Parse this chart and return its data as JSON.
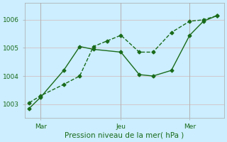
{
  "background_color": "#cceeff",
  "grid_color": "#d4b8b8",
  "line_color": "#1a6b1a",
  "xlabel": "Pression niveau de la mer( hPa )",
  "ylim": [
    1002.5,
    1006.6
  ],
  "yticks": [
    1003,
    1004,
    1005,
    1006
  ],
  "xlim": [
    -0.2,
    8.5
  ],
  "xtick_labels": [
    "Mar",
    "Jeu",
    "Mer"
  ],
  "xtick_positions": [
    0.5,
    4.0,
    7.0
  ],
  "vline_positions": [
    0.5,
    4.0,
    7.0
  ],
  "line1_x": [
    0.0,
    0.5,
    1.5,
    2.2,
    2.8,
    4.0,
    4.8,
    5.4,
    6.2,
    7.0,
    7.6,
    8.2
  ],
  "line1_y": [
    1002.85,
    1003.25,
    1004.2,
    1005.05,
    1004.95,
    1004.85,
    1004.05,
    1004.0,
    1004.2,
    1005.45,
    1005.95,
    1006.15
  ],
  "line2_x": [
    0.0,
    0.5,
    1.5,
    2.2,
    2.8,
    3.4,
    4.0,
    4.8,
    5.4,
    6.2,
    7.0,
    7.6,
    8.2
  ],
  "line2_y": [
    1003.05,
    1003.3,
    1003.7,
    1004.0,
    1005.05,
    1005.25,
    1005.45,
    1004.85,
    1004.85,
    1005.55,
    1005.95,
    1006.0,
    1006.15
  ],
  "marker": "D",
  "markersize": 2.5,
  "linewidth": 1.0,
  "tick_fontsize": 6.5,
  "xlabel_fontsize": 7.5
}
